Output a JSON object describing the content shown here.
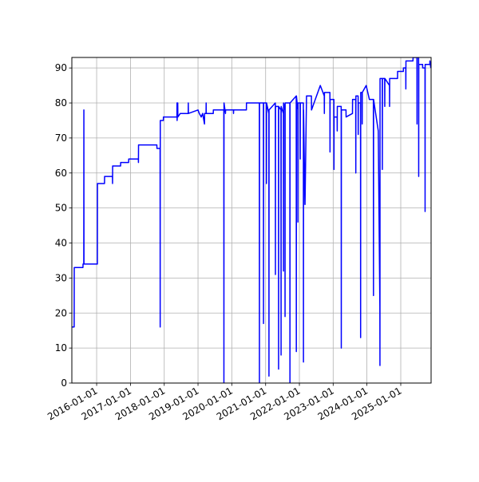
{
  "chart_data": {
    "type": "line",
    "color": "#0000ff",
    "grid": true,
    "xlim": [
      "2015-04-08",
      "2025-11-25"
    ],
    "xticks": [
      "2016-01-01",
      "2017-01-01",
      "2018-01-01",
      "2019-01-01",
      "2020-01-01",
      "2021-01-01",
      "2022-01-01",
      "2023-01-01",
      "2024-01-01",
      "2025-01-01"
    ],
    "ylim": [
      0,
      93
    ],
    "yticks": [
      0,
      10,
      20,
      30,
      40,
      50,
      60,
      70,
      80,
      90
    ],
    "x": [
      "2015-04-08",
      "2015-05-03",
      "2015-05-04",
      "2015-08-06",
      "2015-08-07",
      "2015-08-15",
      "2015-08-16",
      "2015-08-17",
      "2016-01-09",
      "2016-01-10",
      "2016-03-26",
      "2016-03-27",
      "2016-06-20",
      "2016-06-21",
      "2016-06-22",
      "2016-09-16",
      "2016-09-17",
      "2016-12-12",
      "2016-12-13",
      "2017-03-27",
      "2017-03-28",
      "2017-03-29",
      "2017-10-13",
      "2017-10-14",
      "2017-11-17",
      "2017-11-18",
      "2017-11-19",
      "2017-12-22",
      "2017-12-23",
      "2018-05-18",
      "2018-05-19",
      "2018-05-20",
      "2018-05-27",
      "2018-05-28",
      "2018-06-23",
      "2018-09-17",
      "2018-09-18",
      "2018-09-19",
      "2019-01-01",
      "2019-01-15",
      "2019-02-05",
      "2019-02-20",
      "2019-03-12",
      "2019-03-13",
      "2019-03-29",
      "2019-03-30",
      "2019-03-31",
      "2019-06-15",
      "2019-06-16",
      "2019-10-07",
      "2019-10-08",
      "2019-10-09",
      "2019-10-25",
      "2019-10-26",
      "2020-01-19",
      "2020-01-20",
      "2020-01-21",
      "2020-06-07",
      "2020-06-08",
      "2020-10-25",
      "2020-10-26",
      "2020-10-27",
      "2020-12-08",
      "2020-12-09",
      "2020-12-10",
      "2021-01-09",
      "2021-01-10",
      "2021-01-11",
      "2021-02-05",
      "2021-02-06",
      "2021-02-07",
      "2021-04-16",
      "2021-04-17",
      "2021-04-18",
      "2021-05-20",
      "2021-05-21",
      "2021-05-22",
      "2021-06-16",
      "2021-06-17",
      "2021-06-18",
      "2021-07-12",
      "2021-07-13",
      "2021-07-14",
      "2021-07-29",
      "2021-07-30",
      "2021-07-31",
      "2021-09-20",
      "2021-09-21",
      "2021-09-22",
      "2021-11-28",
      "2021-11-29",
      "2021-11-30",
      "2021-12-15",
      "2021-12-16",
      "2021-12-17",
      "2022-01-09",
      "2022-01-10",
      "2022-01-11",
      "2022-02-13",
      "2022-02-14",
      "2022-02-15",
      "2022-03-02",
      "2022-03-03",
      "2022-03-19",
      "2022-05-11",
      "2022-05-12",
      "2022-08-15",
      "2022-09-27",
      "2022-09-28",
      "2022-09-29",
      "2022-11-27",
      "2022-11-28",
      "2022-11-29",
      "2023-01-09",
      "2023-01-10",
      "2023-01-11",
      "2023-02-13",
      "2023-02-14",
      "2023-02-15",
      "2023-03-29",
      "2023-03-30",
      "2023-03-31",
      "2023-05-20",
      "2023-05-21",
      "2023-07-29",
      "2023-07-30",
      "2023-09-02",
      "2023-09-03",
      "2023-09-04",
      "2023-09-28",
      "2023-09-29",
      "2023-09-30",
      "2023-10-24",
      "2023-10-25",
      "2023-10-26",
      "2023-11-10",
      "2023-11-11",
      "2023-11-12",
      "2023-12-24",
      "2024-01-28",
      "2024-03-11",
      "2024-03-12",
      "2024-03-13",
      "2024-05-03",
      "2024-05-20",
      "2024-05-21",
      "2024-05-22",
      "2024-06-15",
      "2024-06-16",
      "2024-06-17",
      "2024-07-11",
      "2024-07-12",
      "2024-07-13",
      "2024-09-01",
      "2024-09-02",
      "2024-09-03",
      "2024-11-27",
      "2024-11-28",
      "2025-01-29",
      "2025-01-30",
      "2025-02-24",
      "2025-02-25",
      "2025-02-26",
      "2025-05-13",
      "2025-05-14",
      "2025-06-25",
      "2025-06-26",
      "2025-06-27",
      "2025-07-13",
      "2025-07-14",
      "2025-07-15",
      "2025-08-25",
      "2025-08-26",
      "2025-09-20",
      "2025-09-21",
      "2025-09-22",
      "2025-11-11",
      "2025-11-12",
      "2025-11-22"
    ],
    "values": [
      16,
      16,
      33,
      33,
      34,
      34,
      78,
      34,
      34,
      57,
      57,
      59,
      59,
      57,
      62,
      62,
      63,
      63,
      64,
      64,
      63,
      68,
      68,
      67,
      67,
      16,
      75,
      75,
      76,
      76,
      80,
      75,
      80,
      76,
      77,
      77,
      80,
      77,
      78,
      77,
      76,
      77,
      74,
      77,
      77,
      80,
      77,
      77,
      78,
      78,
      0,
      80,
      77,
      78,
      78,
      77,
      78,
      78,
      80,
      80,
      0,
      80,
      80,
      17,
      80,
      80,
      57,
      80,
      77,
      2,
      78,
      80,
      31,
      79,
      79,
      4,
      79,
      78,
      8,
      79,
      77,
      32,
      80,
      78,
      19,
      80,
      80,
      0,
      80,
      82,
      9,
      82,
      78,
      46,
      80,
      80,
      64,
      80,
      80,
      6,
      78,
      51,
      51,
      82,
      82,
      78,
      85,
      82,
      77,
      83,
      83,
      66,
      81,
      81,
      61,
      76,
      76,
      72,
      79,
      79,
      10,
      78,
      78,
      76,
      77,
      81,
      81,
      60,
      82,
      82,
      71,
      80,
      80,
      13,
      83,
      83,
      74,
      83,
      85,
      81,
      81,
      25,
      81,
      72,
      22,
      5,
      87,
      87,
      61,
      87,
      87,
      79,
      87,
      85,
      79,
      87,
      87,
      89,
      89,
      90,
      90,
      84,
      92,
      92,
      93,
      93,
      74,
      93,
      93,
      59,
      91,
      91,
      90,
      90,
      49,
      91,
      91,
      92,
      90
    ]
  }
}
